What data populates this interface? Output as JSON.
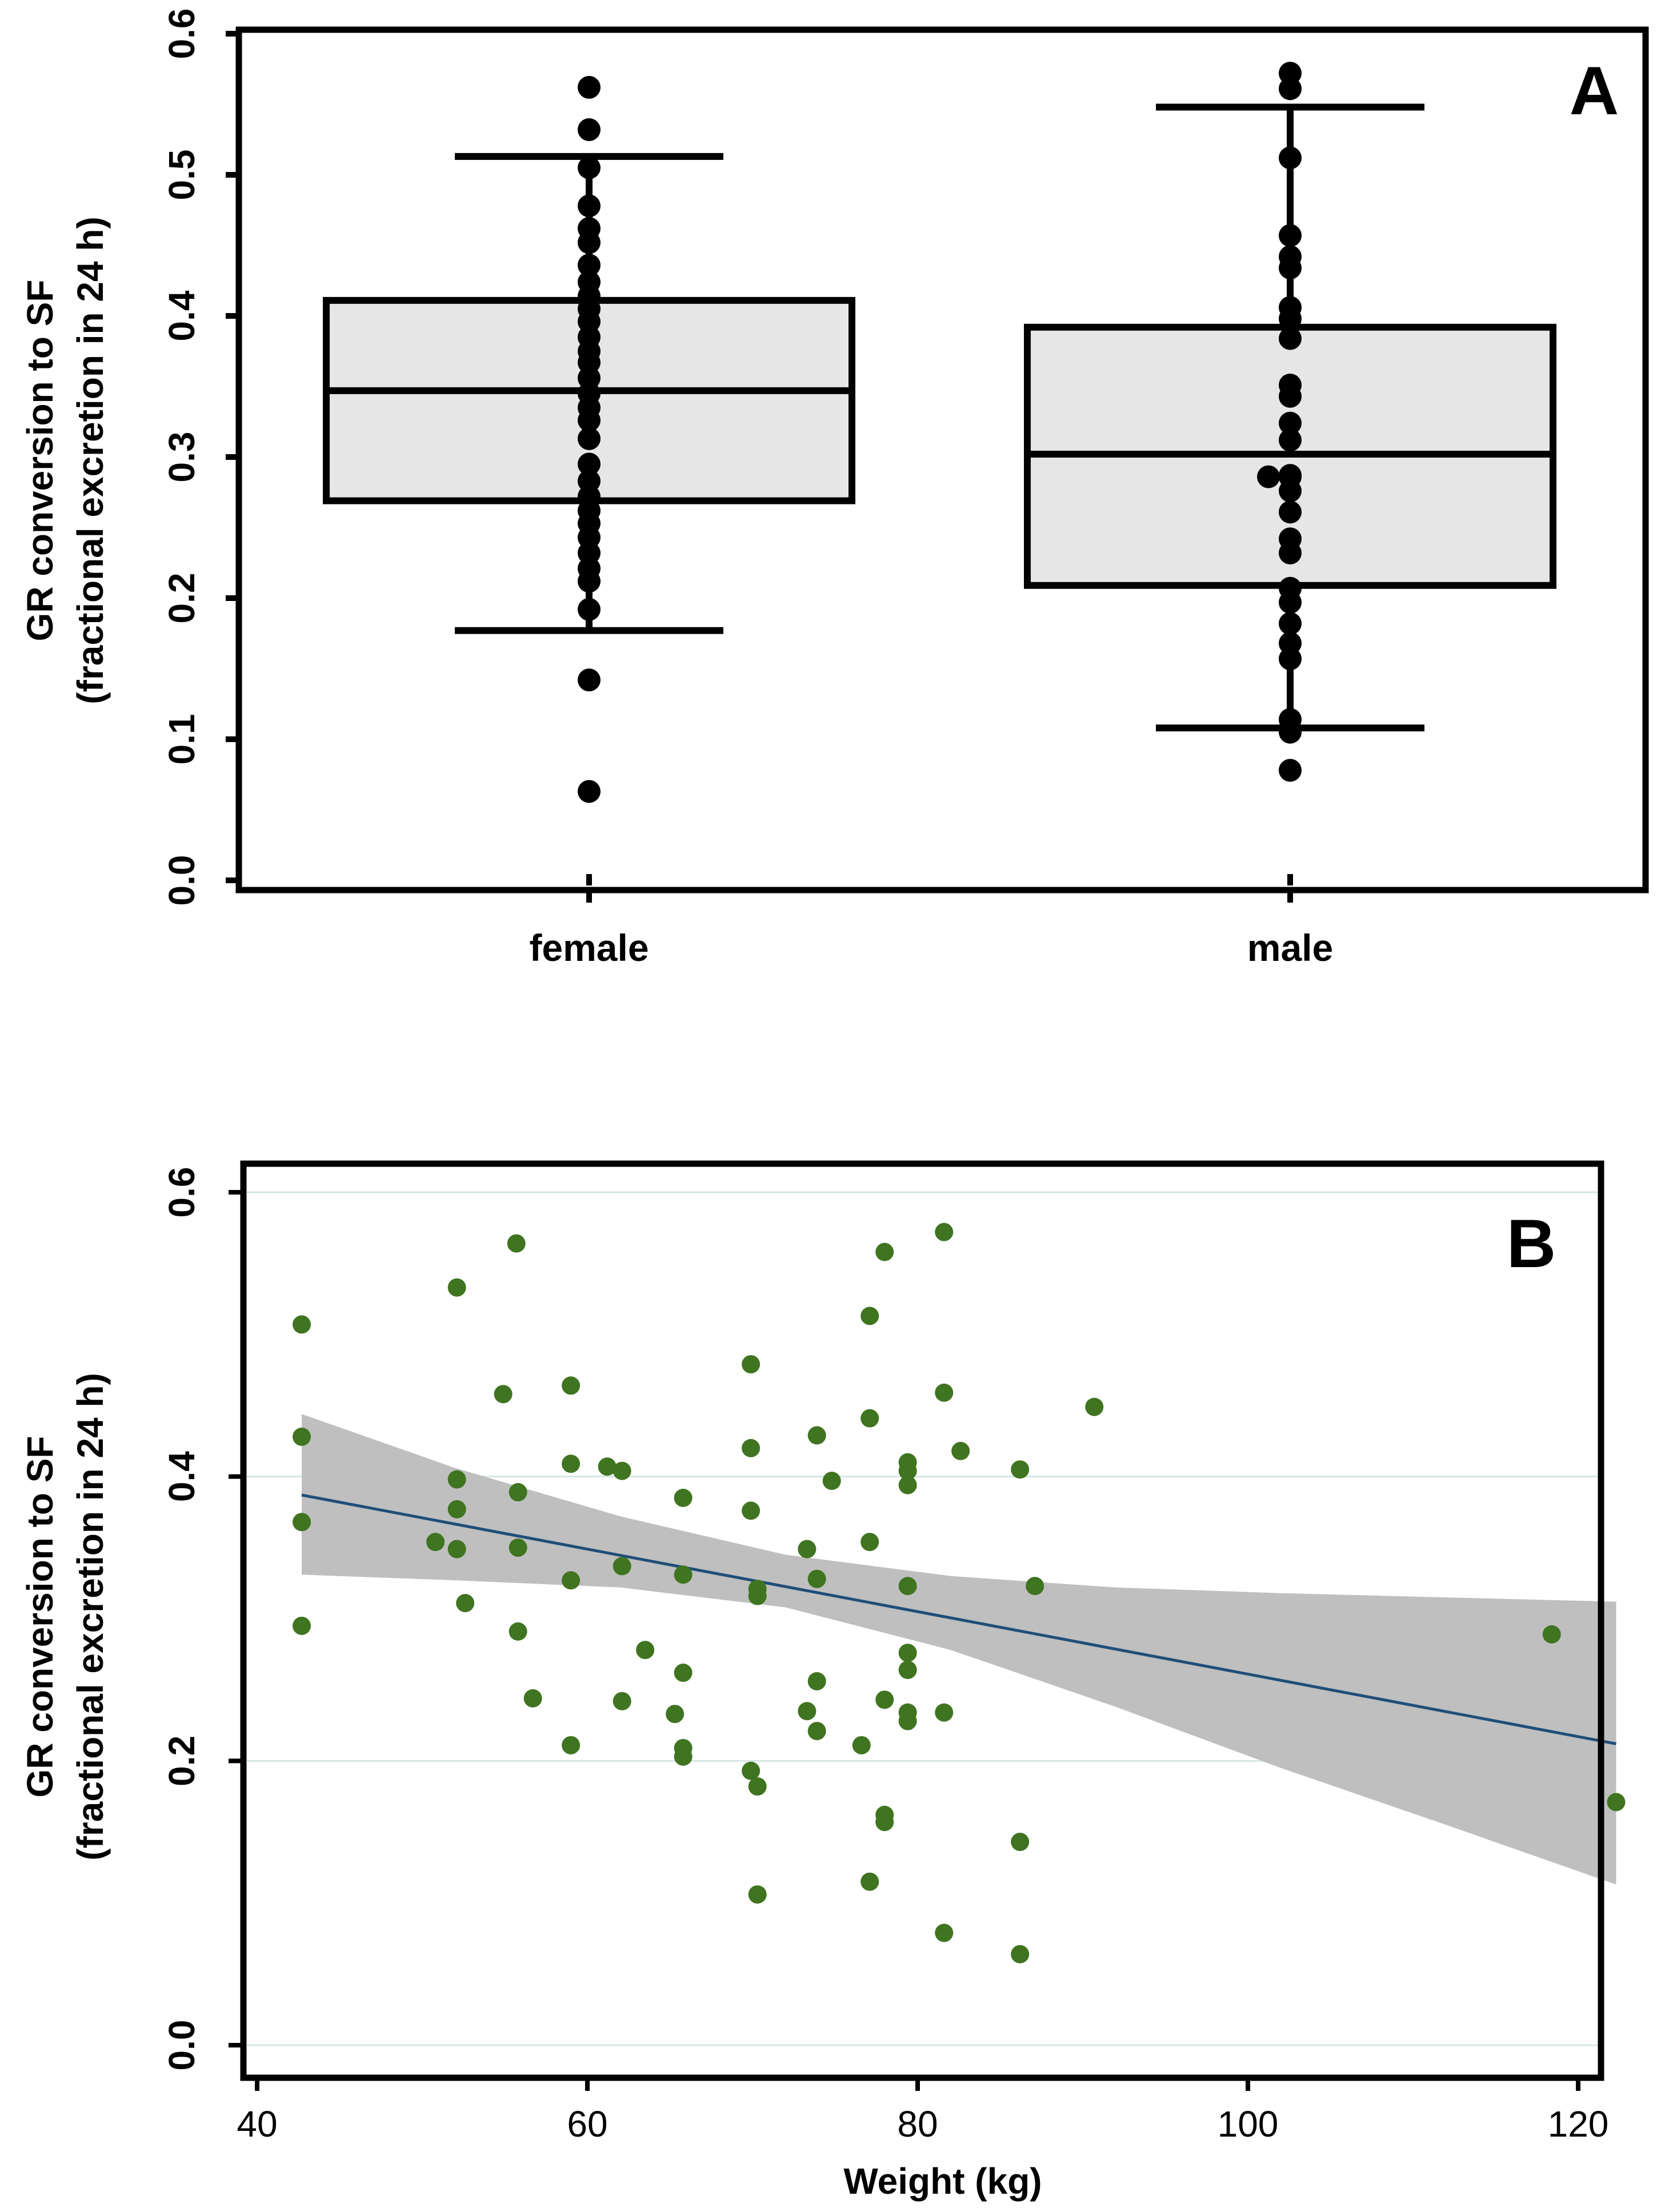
{
  "chart_data": [
    {
      "type": "box",
      "panel_label": "A",
      "ylabel_line1": "GR conversion to SF",
      "ylabel_line2": "(fractional excretion in 24 h)",
      "xlabel": "",
      "ylim": [
        0.0,
        0.6
      ],
      "yticks": [
        0.0,
        0.1,
        0.2,
        0.3,
        0.4,
        0.5,
        0.6
      ],
      "ytick_labels": [
        "0.0",
        "0.1",
        "0.2",
        "0.3",
        "0.4",
        "0.5",
        "0.6"
      ],
      "categories": [
        "female",
        "male"
      ],
      "colors": {
        "box_fill": "#e6e6e6",
        "stroke": "#000000",
        "points": "#000000"
      },
      "boxes": [
        {
          "name": "female",
          "whisker_low": 0.177,
          "q1": 0.269,
          "median": 0.347,
          "q3": 0.411,
          "whisker_high": 0.513
        },
        {
          "name": "male",
          "whisker_low": 0.108,
          "q1": 0.209,
          "median": 0.302,
          "q3": 0.392,
          "whisker_high": 0.548
        }
      ],
      "points": [
        {
          "category": "female",
          "values": [
            0.562,
            0.532,
            0.505,
            0.478,
            0.462,
            0.452,
            0.436,
            0.424,
            0.414,
            0.405,
            0.396,
            0.385,
            0.375,
            0.367,
            0.356,
            0.345,
            0.335,
            0.326,
            0.313,
            0.295,
            0.283,
            0.272,
            0.262,
            0.253,
            0.243,
            0.232,
            0.221,
            0.212,
            0.192,
            0.142,
            0.063
          ]
        },
        {
          "category": "male",
          "values": [
            0.572,
            0.561,
            0.512,
            0.457,
            0.442,
            0.434,
            0.406,
            0.398,
            0.384,
            0.351,
            0.343,
            0.324,
            0.312,
            0.287,
            0.286,
            0.286,
            0.276,
            0.261,
            0.242,
            0.232,
            0.207,
            0.197,
            0.182,
            0.168,
            0.157,
            0.114,
            0.105,
            0.078
          ]
        }
      ]
    },
    {
      "type": "scatter",
      "panel_label": "B",
      "ylabel_line1": "GR conversion to SF",
      "ylabel_line2": "(fractional excretion in 24 h)",
      "xlabel": "Weight (kg)",
      "xlim": [
        39,
        124
      ],
      "ylim": [
        -0.02,
        0.62
      ],
      "xticks": [
        40,
        60,
        80,
        100,
        120
      ],
      "xtick_labels": [
        "40",
        "60",
        "80",
        "100",
        "120"
      ],
      "yticks": [
        0.0,
        0.2,
        0.4,
        0.6
      ],
      "ytick_labels": [
        "0.0",
        "0.2",
        "0.4",
        "0.6"
      ],
      "grid": true,
      "colors": {
        "points": "#3f7420",
        "fit_line": "#1f4e79",
        "ci_band": "#bfbfbf",
        "grid": "#d5e5e5",
        "frame": "#000000"
      },
      "fit_line": {
        "x": [
          42.7,
          122.3
        ],
        "y": [
          0.387,
          0.212
        ]
      },
      "confidence_band": {
        "x": [
          42.7,
          52,
          62,
          72,
          82,
          92,
          102,
          112,
          122.3
        ],
        "upper": [
          0.444,
          0.406,
          0.372,
          0.345,
          0.33,
          0.322,
          0.318,
          0.315,
          0.312
        ],
        "lower": [
          0.331,
          0.327,
          0.322,
          0.308,
          0.278,
          0.238,
          0.195,
          0.155,
          0.113
        ]
      },
      "points": [
        [
          42.7,
          0.507
        ],
        [
          42.7,
          0.428
        ],
        [
          42.7,
          0.368
        ],
        [
          42.7,
          0.295
        ],
        [
          50.8,
          0.354
        ],
        [
          52.1,
          0.533
        ],
        [
          52.1,
          0.398
        ],
        [
          52.1,
          0.377
        ],
        [
          52.1,
          0.349
        ],
        [
          52.6,
          0.311
        ],
        [
          54.9,
          0.458
        ],
        [
          55.7,
          0.564
        ],
        [
          55.8,
          0.389
        ],
        [
          55.8,
          0.35
        ],
        [
          55.8,
          0.291
        ],
        [
          56.7,
          0.244
        ],
        [
          59.0,
          0.464
        ],
        [
          59.0,
          0.409
        ],
        [
          59.0,
          0.327
        ],
        [
          59.0,
          0.211
        ],
        [
          61.2,
          0.407
        ],
        [
          62.1,
          0.404
        ],
        [
          62.1,
          0.337
        ],
        [
          62.1,
          0.242
        ],
        [
          63.5,
          0.278
        ],
        [
          65.3,
          0.233
        ],
        [
          65.8,
          0.385
        ],
        [
          65.8,
          0.331
        ],
        [
          65.8,
          0.262
        ],
        [
          65.8,
          0.209
        ],
        [
          65.8,
          0.203
        ],
        [
          69.9,
          0.479
        ],
        [
          69.9,
          0.42
        ],
        [
          69.9,
          0.376
        ],
        [
          69.9,
          0.193
        ],
        [
          70.3,
          0.321
        ],
        [
          70.3,
          0.316
        ],
        [
          70.3,
          0.182
        ],
        [
          70.3,
          0.106
        ],
        [
          73.3,
          0.349
        ],
        [
          73.3,
          0.235
        ],
        [
          73.9,
          0.429
        ],
        [
          73.9,
          0.328
        ],
        [
          73.9,
          0.256
        ],
        [
          73.9,
          0.221
        ],
        [
          74.8,
          0.397
        ],
        [
          76.6,
          0.211
        ],
        [
          77.1,
          0.513
        ],
        [
          77.1,
          0.441
        ],
        [
          77.1,
          0.354
        ],
        [
          77.1,
          0.115
        ],
        [
          78.0,
          0.558
        ],
        [
          78.0,
          0.243
        ],
        [
          78.0,
          0.162
        ],
        [
          78.0,
          0.157
        ],
        [
          79.4,
          0.41
        ],
        [
          79.4,
          0.404
        ],
        [
          79.4,
          0.394
        ],
        [
          79.4,
          0.323
        ],
        [
          79.4,
          0.276
        ],
        [
          79.4,
          0.264
        ],
        [
          79.4,
          0.234
        ],
        [
          79.4,
          0.228
        ],
        [
          81.6,
          0.572
        ],
        [
          81.6,
          0.459
        ],
        [
          81.6,
          0.234
        ],
        [
          81.6,
          0.079
        ],
        [
          82.6,
          0.418
        ],
        [
          86.2,
          0.405
        ],
        [
          86.2,
          0.143
        ],
        [
          86.2,
          0.064
        ],
        [
          87.1,
          0.323
        ],
        [
          90.7,
          0.449
        ],
        [
          118.4,
          0.289
        ],
        [
          122.3,
          0.171
        ]
      ]
    }
  ]
}
